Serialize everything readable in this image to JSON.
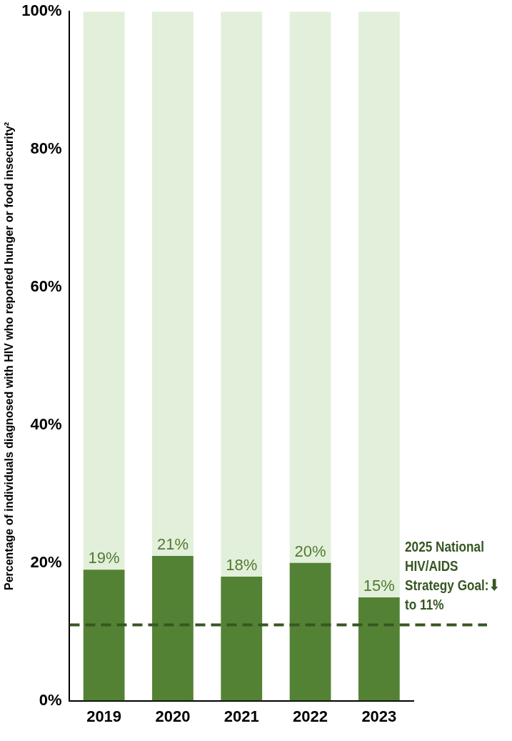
{
  "chart_data": {
    "type": "bar",
    "stacked": true,
    "ylabel": "Percentage of individuals diagnosed with HIV who reported hunger or food insecurity²",
    "categories": [
      "2019",
      "2020",
      "2021",
      "2022",
      "2023"
    ],
    "series": [
      {
        "color": "#548235",
        "values": [
          19,
          21,
          18,
          20,
          15
        ],
        "value_labels": [
          "19%",
          "21%",
          "18%",
          "20%",
          "15%"
        ]
      },
      {
        "color": "#e2efda",
        "values": [
          81,
          79,
          82,
          80,
          85
        ]
      }
    ],
    "ylim": [
      0,
      100
    ],
    "yticks": [
      {
        "value": 0,
        "label": "0%"
      },
      {
        "value": 20,
        "label": "20%"
      },
      {
        "value": 40,
        "label": "40%"
      },
      {
        "value": 60,
        "label": "60%"
      },
      {
        "value": 80,
        "label": "80%"
      },
      {
        "value": 100,
        "label": "100%"
      }
    ],
    "ref_lines": [
      {
        "axis": "y",
        "value": 11,
        "label": "2025 National HIV/AIDS Strategy Goal:⬇ to 11%",
        "color": "#375623",
        "line_style": "dashed"
      }
    ],
    "grid": false,
    "legend": false
  }
}
